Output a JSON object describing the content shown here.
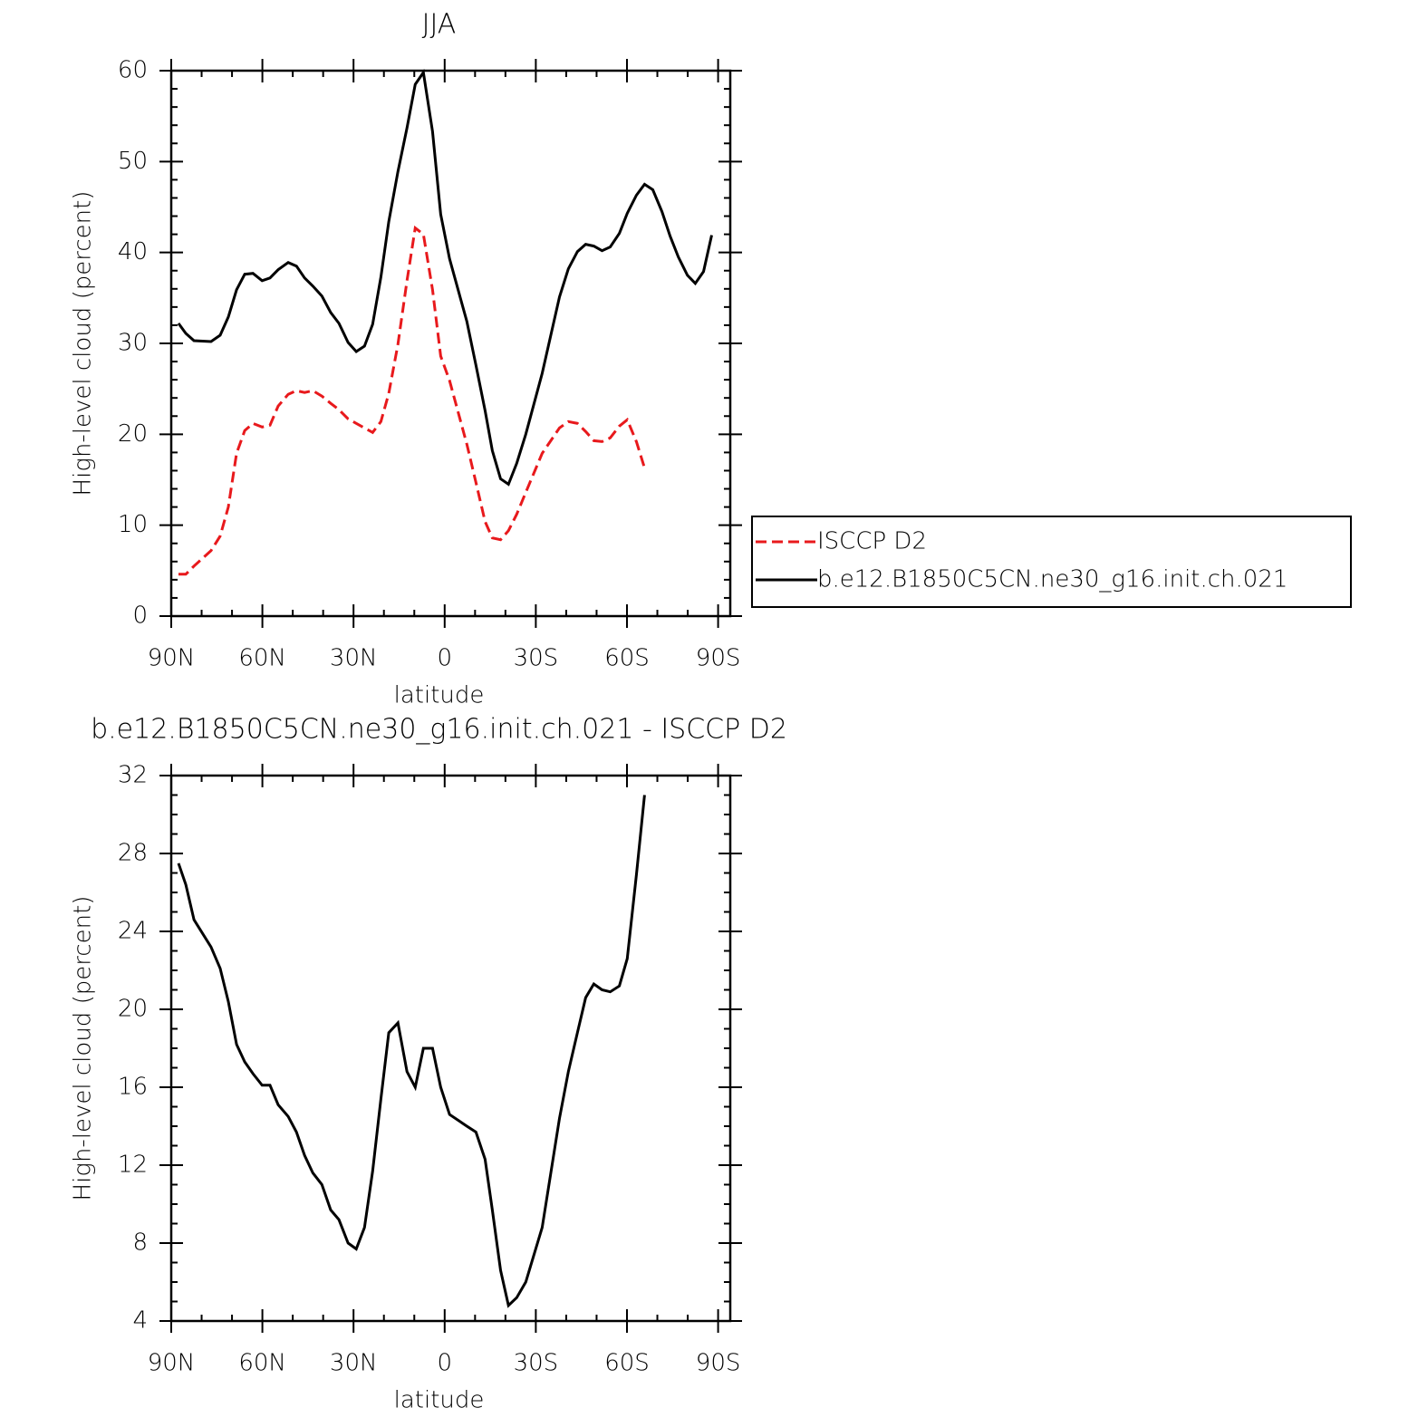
{
  "chart_data": [
    {
      "type": "line",
      "title": "JJA",
      "xlabel": "latitude",
      "ylabel": "High-level cloud (percent)",
      "xlim": [
        90,
        -94
      ],
      "xticks": [
        {
          "value": 90,
          "label": "90N"
        },
        {
          "value": 60,
          "label": "60N"
        },
        {
          "value": 30,
          "label": "30N"
        },
        0,
        {
          "value": -30,
          "label": "30S"
        },
        {
          "value": -60,
          "label": "60S"
        },
        {
          "value": -90,
          "label": "90S"
        }
      ],
      "ylim": [
        0,
        60
      ],
      "yticks": [
        0,
        10,
        20,
        30,
        40,
        50,
        60
      ],
      "legend": "right",
      "x": [
        87.6,
        85.2,
        82.5,
        76.9,
        73.9,
        71.2,
        68.5,
        65.8,
        63.1,
        60.1,
        57.5,
        54.8,
        51.5,
        48.8,
        46.1,
        43.4,
        40.4,
        37.5,
        34.8,
        31.8,
        29.1,
        26.4,
        23.7,
        21.0,
        18.4,
        15.4,
        12.4,
        9.7,
        7.0,
        4.0,
        1.3,
        -1.6,
        -7.3,
        -10.3,
        -13.3,
        -15.7,
        -18.4,
        -21.0,
        -23.7,
        -26.7,
        -32.1,
        -37.8,
        -40.7,
        -43.7,
        -46.4,
        -49.1,
        -51.8,
        -54.5,
        -57.5,
        -60.1,
        -63.1,
        -65.8,
        -68.5,
        -71.5,
        -74.2,
        -76.9,
        -79.9,
        -82.5,
        -85.2,
        -87.9
      ],
      "series": [
        {
          "name": "ISCCP D2",
          "color": "#e8191c",
          "line_style": "dashed",
          "values": [
            4.6,
            4.6,
            5.5,
            7.2,
            8.8,
            12.0,
            17.9,
            20.4,
            21.2,
            20.8,
            21.0,
            23.1,
            24.4,
            24.8,
            24.6,
            24.8,
            24.2,
            23.4,
            22.7,
            21.7,
            21.2,
            20.7,
            20.2,
            21.4,
            24.5,
            29.9,
            36.9,
            42.7,
            42.0,
            35.9,
            28.6,
            25.9,
            18.9,
            14.7,
            10.4,
            8.6,
            8.4,
            9.4,
            11.2,
            13.6,
            17.9,
            20.7,
            21.4,
            21.2,
            20.3,
            19.3,
            19.2,
            19.6,
            20.9,
            21.6,
            19.2,
            16.3,
            null,
            null,
            null,
            null,
            null,
            null,
            null,
            null
          ]
        },
        {
          "name": "b.e12.B1850C5CN.ne30_g16.init.ch.021",
          "color": "#000000",
          "line_style": "solid",
          "values": [
            32.2,
            31.1,
            30.3,
            30.2,
            30.9,
            32.9,
            35.9,
            37.6,
            37.7,
            36.9,
            37.2,
            38.1,
            38.9,
            38.5,
            37.2,
            36.3,
            35.2,
            33.4,
            32.2,
            30.1,
            29.1,
            29.7,
            32.1,
            37.3,
            43.4,
            48.9,
            53.7,
            58.5,
            59.8,
            53.3,
            44.2,
            39.3,
            32.4,
            27.6,
            22.6,
            18.2,
            15.1,
            14.5,
            16.8,
            20.0,
            26.7,
            35.1,
            38.2,
            40.1,
            40.9,
            40.7,
            40.2,
            40.6,
            42.1,
            44.3,
            46.3,
            47.5,
            46.9,
            44.5,
            41.8,
            39.5,
            37.5,
            36.6,
            37.9,
            41.9
          ]
        }
      ]
    },
    {
      "type": "line",
      "title": "b.e12.B1850C5CN.ne30_g16.init.ch.021 - ISCCP D2",
      "xlabel": "latitude",
      "ylabel": "High-level cloud (percent)",
      "xlim": [
        90,
        -94
      ],
      "xticks": [
        {
          "value": 90,
          "label": "90N"
        },
        {
          "value": 60,
          "label": "60N"
        },
        {
          "value": 30,
          "label": "30N"
        },
        0,
        {
          "value": -30,
          "label": "30S"
        },
        {
          "value": -60,
          "label": "60S"
        },
        {
          "value": -90,
          "label": "90S"
        }
      ],
      "ylim": [
        4,
        32
      ],
      "yticks": [
        4,
        8,
        12,
        16,
        20,
        24,
        28,
        32
      ],
      "x": [
        87.6,
        85.2,
        82.5,
        76.9,
        73.9,
        71.2,
        68.5,
        65.8,
        63.1,
        60.1,
        57.5,
        54.8,
        51.5,
        48.8,
        46.1,
        43.4,
        40.4,
        37.5,
        34.8,
        31.8,
        29.1,
        26.4,
        23.7,
        21.0,
        18.4,
        15.4,
        12.4,
        9.7,
        7.0,
        4.0,
        1.3,
        -1.6,
        -7.3,
        -10.3,
        -13.3,
        -15.7,
        -18.4,
        -21.0,
        -23.7,
        -26.7,
        -32.1,
        -37.8,
        -40.7,
        -43.7,
        -46.4,
        -49.1,
        -51.8,
        -54.5,
        -57.5,
        -60.1,
        -63.1,
        -65.8,
        -68.5,
        -71.5,
        -74.2,
        -76.9,
        -79.9,
        -82.5,
        -85.2,
        -87.9
      ],
      "series": [
        {
          "color": "#000000",
          "line_style": "solid",
          "values": [
            27.5,
            26.4,
            24.6,
            23.2,
            22.1,
            20.4,
            18.2,
            17.3,
            16.7,
            16.1,
            16.1,
            15.1,
            14.5,
            13.7,
            12.5,
            11.6,
            11.0,
            9.7,
            9.2,
            8.0,
            7.7,
            8.8,
            11.7,
            15.4,
            18.8,
            19.3,
            16.8,
            16.0,
            18.0,
            18.0,
            16.0,
            14.6,
            14.0,
            13.7,
            12.3,
            9.7,
            6.6,
            4.8,
            5.2,
            6.0,
            8.8,
            14.4,
            16.8,
            18.8,
            20.6,
            21.3,
            21.0,
            20.9,
            21.2,
            22.6,
            26.9,
            31.0,
            null,
            null,
            null,
            null,
            null,
            null,
            null,
            null
          ]
        }
      ]
    }
  ]
}
